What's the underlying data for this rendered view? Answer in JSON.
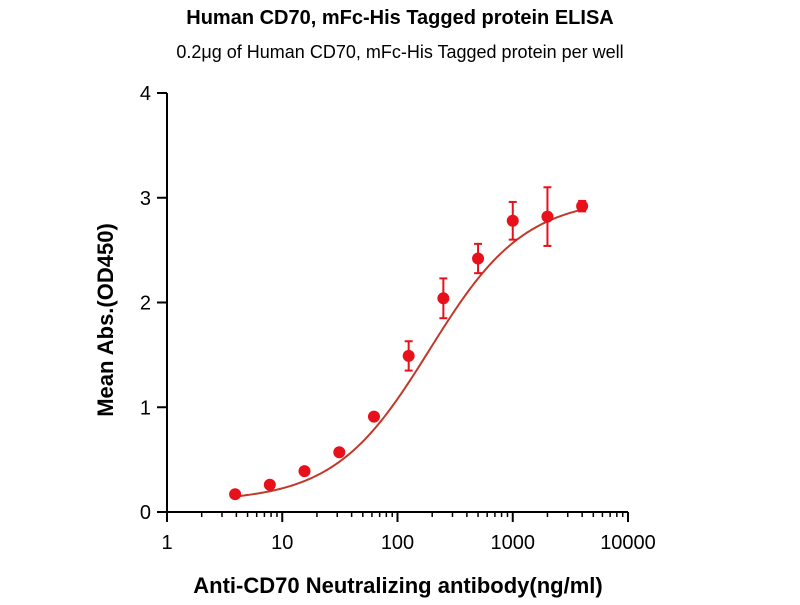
{
  "chart_data": {
    "type": "scatter",
    "title": "Human CD70,  mFc-His Tagged protein ELISA",
    "subtitle": "0.2μg of Human CD70, mFc-His Tagged protein per well",
    "xlabel": "Anti-CD70 Neutralizing antibody(ng/ml)",
    "ylabel": "Mean Abs.(OD450)",
    "xscale": "log",
    "xlim": [
      1,
      10000
    ],
    "ylim": [
      0,
      4
    ],
    "x_ticks": [
      {
        "value": 1,
        "label": "1"
      },
      {
        "value": 10,
        "label": "10"
      },
      {
        "value": 100,
        "label": "100"
      },
      {
        "value": 1000,
        "label": "1000"
      },
      {
        "value": 10000,
        "label": "10000"
      }
    ],
    "y_ticks": [
      {
        "value": 0,
        "label": "0"
      },
      {
        "value": 1,
        "label": "1"
      },
      {
        "value": 2,
        "label": "2"
      },
      {
        "value": 3,
        "label": "3"
      },
      {
        "value": 4,
        "label": "4"
      }
    ],
    "grid": false,
    "legend": "none",
    "color": "#e8101a",
    "curve_color": "#c0392b",
    "series": [
      {
        "x": [
          3.9,
          7.8,
          15.6,
          31.25,
          62.5,
          125,
          250,
          500,
          1000,
          2000,
          4000
        ],
        "y": [
          0.17,
          0.26,
          0.39,
          0.57,
          0.91,
          1.49,
          2.04,
          2.42,
          2.78,
          2.82,
          2.92
        ],
        "error": [
          0.02,
          0.02,
          0.03,
          0.03,
          0.03,
          0.14,
          0.19,
          0.14,
          0.18,
          0.28,
          0.05
        ]
      }
    ],
    "fit": {
      "model": "4PL",
      "bottom": 0.1,
      "top": 3.0,
      "ec50": 190,
      "hill": 1.05
    }
  }
}
